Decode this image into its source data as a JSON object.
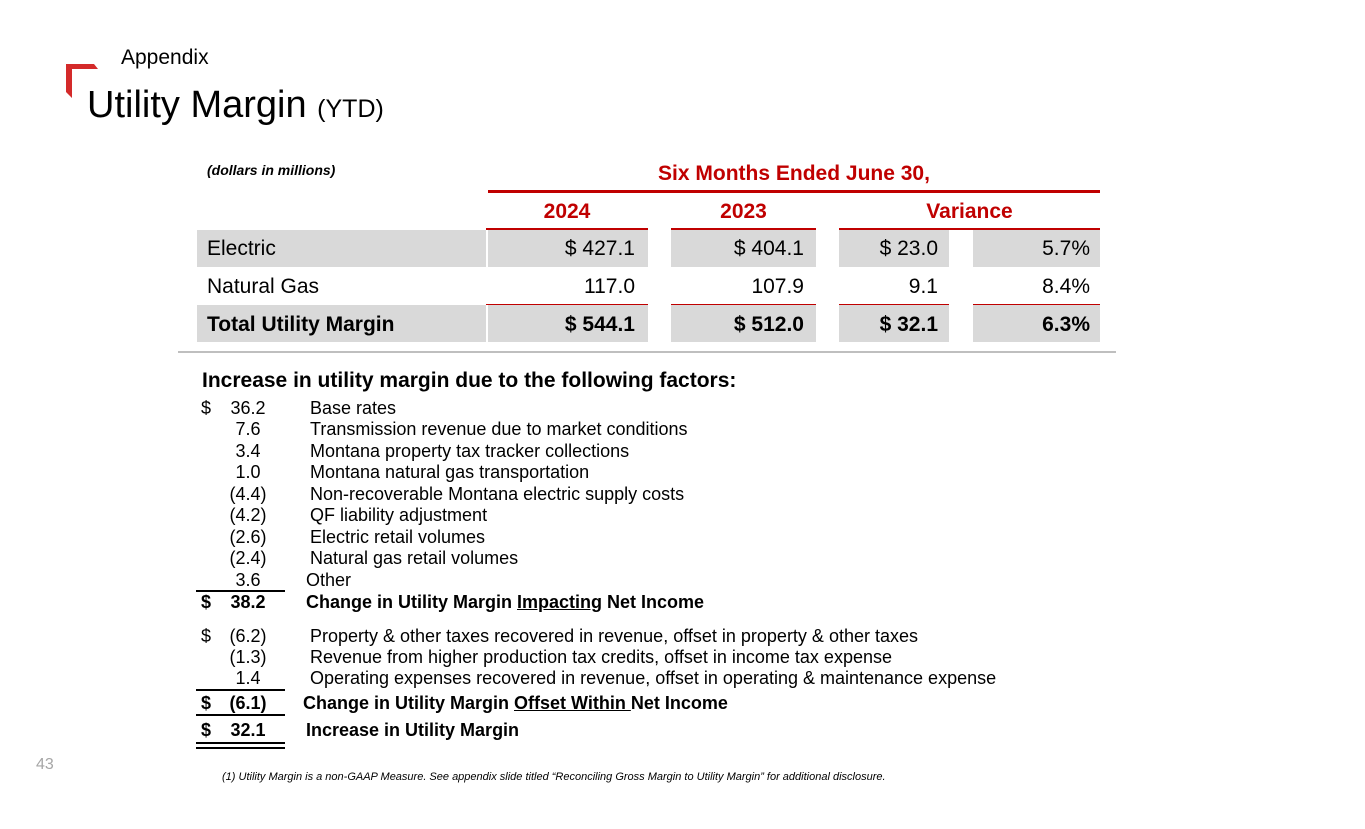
{
  "header": {
    "section": "Appendix",
    "title": "Utility Margin",
    "title_suffix": "(YTD)",
    "logo_icon": "corner-bracket-icon",
    "accent_color": "#c00000"
  },
  "table": {
    "units_note": "(dollars in millions)",
    "period_label": "Six Months Ended June 30,",
    "columns": [
      "2024",
      "2023",
      "Variance"
    ],
    "rows": [
      {
        "label": "Electric",
        "y2024": "$ 427.1",
        "y2023": "$ 404.1",
        "var_amt": "$ 23.0",
        "var_pct": "5.7%"
      },
      {
        "label": "Natural Gas",
        "y2024": "117.0",
        "y2023": "107.9",
        "var_amt": "9.1",
        "var_pct": "8.4%"
      },
      {
        "label": "Total Utility Margin",
        "y2024": "$ 544.1",
        "y2023": "$ 512.0",
        "var_amt": "$ 32.1",
        "var_pct": "6.3%"
      }
    ]
  },
  "factors": {
    "title": "Increase in utility margin due to the following factors:",
    "group1": [
      {
        "dollar": "$",
        "amount": "36.2",
        "desc": "Base rates"
      },
      {
        "dollar": "",
        "amount": "7.6",
        "desc": "Transmission revenue due to market conditions"
      },
      {
        "dollar": "",
        "amount": "3.4",
        "desc": "Montana property tax tracker collections"
      },
      {
        "dollar": "",
        "amount": "1.0",
        "desc": "Montana natural gas transportation"
      },
      {
        "dollar": "",
        "amount": "(4.4)",
        "desc": "Non-recoverable Montana electric supply costs"
      },
      {
        "dollar": "",
        "amount": "(4.2)",
        "desc": "QF liability adjustment"
      },
      {
        "dollar": "",
        "amount": "(2.6)",
        "desc": "Electric retail volumes"
      },
      {
        "dollar": "",
        "amount": "(2.4)",
        "desc": "Natural gas retail volumes"
      },
      {
        "dollar": "",
        "amount": "3.6",
        "desc": "Other"
      }
    ],
    "subtotal1": {
      "dollar": "$",
      "amount": "38.2",
      "desc_pre": "Change in Utility Margin ",
      "desc_ul": "Impacting",
      "desc_post": " Net Income"
    },
    "group2": [
      {
        "dollar": "$",
        "amount": "(6.2)",
        "desc": "Property & other taxes recovered in revenue, offset in property & other taxes"
      },
      {
        "dollar": "",
        "amount": "(1.3)",
        "desc": "Revenue from higher production tax credits, offset in income tax expense"
      },
      {
        "dollar": "",
        "amount": "1.4",
        "desc": "Operating expenses recovered in revenue, offset in operating & maintenance expense"
      }
    ],
    "subtotal2": {
      "dollar": "$",
      "amount": "(6.1)",
      "desc_pre": "Change in Utility Margin ",
      "desc_ul": "Offset Within ",
      "desc_post": "Net Income"
    },
    "total": {
      "dollar": "$",
      "amount": "32.1",
      "desc": "Increase in Utility Margin"
    }
  },
  "footer": {
    "page_number": "43",
    "footnote": "(1) Utility Margin is a non-GAAP Measure. See appendix slide titled “Reconciling Gross Margin to Utility Margin” for additional disclosure."
  }
}
